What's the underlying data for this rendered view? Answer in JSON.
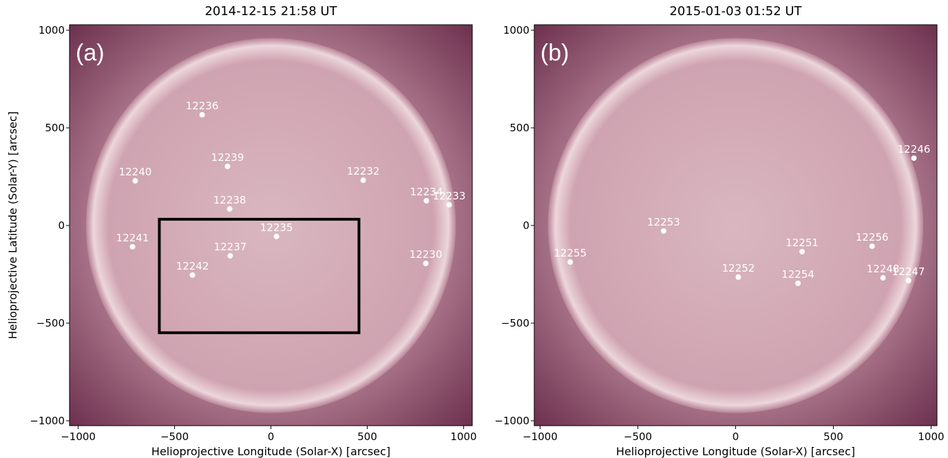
{
  "chart_data": [
    {
      "type": "scatter",
      "title": "2014-12-15 21:58 UT",
      "panel_label": "(a)",
      "xlabel": "Helioprojective Longitude (Solar-X) [arcsec]",
      "ylabel": "Helioprojective Latitude (Solar-Y) [arcsec]",
      "xlim": [
        -1045,
        1045
      ],
      "ylim": [
        -1025,
        1028
      ],
      "xticks": [
        {
          "value": -1000,
          "label": "−1000"
        },
        {
          "value": -500,
          "label": "−500"
        },
        0,
        500,
        1000
      ],
      "yticks": [
        {
          "value": -1000,
          "label": "−1000"
        },
        {
          "value": -500,
          "label": "−500"
        },
        0,
        500,
        1000
      ],
      "points": {
        "labels": [
          "12236",
          "12239",
          "12240",
          "12232",
          "12234",
          "12233",
          "12238",
          "12235",
          "12241",
          "12237",
          "12230",
          "12242"
        ],
        "x": [
          -357,
          -225,
          -704,
          479,
          807,
          925,
          -214,
          29,
          -718,
          -211,
          804,
          -407
        ],
        "y": [
          567,
          303,
          229,
          232,
          127,
          106,
          85,
          -56,
          -109,
          -155,
          -194,
          -254
        ]
      },
      "box": {
        "xlim": [
          -579,
          457
        ],
        "ylim": [
          -549,
          32
        ]
      }
    },
    {
      "type": "scatter",
      "title": "2015-01-03 01:52 UT",
      "panel_label": "(b)",
      "xlabel": "Helioprojective Longitude (Solar-X) [arcsec]",
      "xlim": [
        -1030,
        1030
      ],
      "ylim": [
        -1025,
        1028
      ],
      "xticks": [
        {
          "value": -1000,
          "label": "−1000"
        },
        {
          "value": -500,
          "label": "−500"
        },
        0,
        500,
        1000
      ],
      "yticks": [
        {
          "value": -1000,
          "label": "−1000"
        },
        {
          "value": -500,
          "label": "−500"
        },
        0,
        500,
        1000
      ],
      "points": {
        "labels": [
          "12246",
          "12253",
          "12255",
          "12256",
          "12251",
          "12252",
          "12254",
          "12248",
          "12247"
        ],
        "x": [
          912,
          -368,
          -846,
          698,
          340,
          14,
          319,
          754,
          884
        ],
        "y": [
          345,
          -28,
          -187,
          -106,
          -134,
          -264,
          -296,
          -268,
          -282
        ]
      }
    }
  ]
}
